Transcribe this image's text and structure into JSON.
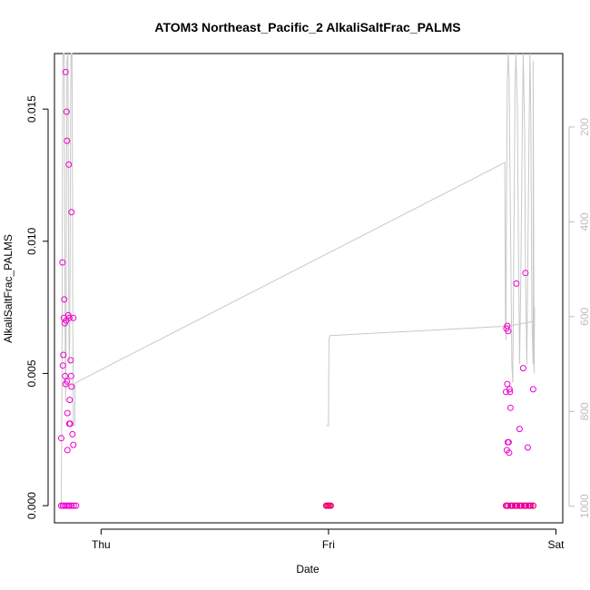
{
  "chart_data": {
    "type": "scatter",
    "title": "ATOM3 Northeast_Pacific_2 AlkaliSaltFrac_PALMS",
    "xlabel": "Date",
    "ylabel": "AlkaliSaltFrac_PALMS",
    "x_ticks": [
      {
        "label": "Thu",
        "value": 0
      },
      {
        "label": "Fri",
        "value": 1
      },
      {
        "label": "Sat",
        "value": 2
      }
    ],
    "xlim": [
      -0.205,
      2.03
    ],
    "ylim": [
      -0.00065,
      0.0171
    ],
    "y_ticks": [
      "0.000",
      "0.005",
      "0.010",
      "0.015"
    ],
    "y_tick_values": [
      0,
      0.005,
      0.01,
      0.015
    ],
    "right_axis": {
      "ticks": [
        "200",
        "400",
        "600",
        "800",
        "1000"
      ],
      "tick_values": [
        200,
        400,
        600,
        800,
        1000
      ],
      "reversed": true,
      "lim": [
        1035,
        45
      ],
      "color": "#bdbdbd"
    },
    "grid": false,
    "series": [
      {
        "marker": "open-circle",
        "color": "#ee00cc",
        "points": [
          [
            -0.175,
            0.00255
          ],
          [
            -0.17,
            0.0092
          ],
          [
            -0.168,
            0.0053
          ],
          [
            -0.166,
            0.0057
          ],
          [
            -0.164,
            0.0071
          ],
          [
            -0.162,
            0.0078
          ],
          [
            -0.16,
            0.0069
          ],
          [
            -0.158,
            0.0049
          ],
          [
            -0.156,
            0.0164
          ],
          [
            -0.156,
            0.0046
          ],
          [
            -0.154,
            0.007
          ],
          [
            -0.152,
            0.0149
          ],
          [
            -0.15,
            0.0138
          ],
          [
            -0.15,
            0.0047
          ],
          [
            -0.148,
            0.0035
          ],
          [
            -0.148,
            0.0021
          ],
          [
            -0.144,
            0.0072
          ],
          [
            -0.142,
            0.0129
          ],
          [
            -0.14,
            0.0071
          ],
          [
            -0.14,
            0.0031
          ],
          [
            -0.138,
            0.004
          ],
          [
            -0.136,
            0.0031
          ],
          [
            -0.134,
            0.0055
          ],
          [
            -0.132,
            0.0049
          ],
          [
            -0.13,
            0.0111
          ],
          [
            -0.13,
            0.0045
          ],
          [
            -0.126,
            0.0027
          ],
          [
            -0.122,
            0.0071
          ],
          [
            -0.122,
            0.0023
          ],
          [
            -0.175,
            0
          ],
          [
            -0.168,
            0
          ],
          [
            -0.16,
            0
          ],
          [
            -0.152,
            0
          ],
          [
            -0.145,
            0
          ],
          [
            -0.14,
            0
          ],
          [
            -0.13,
            0
          ],
          [
            -0.12,
            0
          ],
          [
            -0.11,
            0
          ],
          [
            1.78,
            0.0043
          ],
          [
            1.782,
            0.0067
          ],
          [
            1.784,
            0.0021
          ],
          [
            1.786,
            0.0068
          ],
          [
            1.786,
            0.0046
          ],
          [
            1.788,
            0.0024
          ],
          [
            1.79,
            0.0066
          ],
          [
            1.792,
            0.0024
          ],
          [
            1.794,
            0.002
          ],
          [
            1.796,
            0.0044
          ],
          [
            1.798,
            0.0043
          ],
          [
            1.8,
            0.0037
          ],
          [
            1.826,
            0.0084
          ],
          [
            1.84,
            0.0029
          ],
          [
            1.856,
            0.0052
          ],
          [
            1.866,
            0.0088
          ],
          [
            1.876,
            0.0022
          ],
          [
            1.9,
            0.0044
          ],
          [
            1.78,
            0
          ],
          [
            1.79,
            0
          ],
          [
            1.8,
            0
          ],
          [
            1.81,
            0
          ],
          [
            1.82,
            0
          ],
          [
            1.83,
            0
          ],
          [
            1.84,
            0
          ],
          [
            1.85,
            0
          ],
          [
            1.86,
            0
          ],
          [
            1.87,
            0
          ],
          [
            1.88,
            0
          ],
          [
            1.89,
            0
          ],
          [
            1.9,
            0
          ]
        ]
      },
      {
        "marker": "open-circle",
        "color": "#ee0066",
        "points": [
          [
            0.99,
            0
          ],
          [
            0.995,
            0
          ],
          [
            1.0,
            0
          ],
          [
            1.005,
            0
          ],
          [
            1.01,
            0
          ],
          [
            1.785,
            0
          ],
          [
            1.805,
            0
          ],
          [
            1.825,
            0
          ],
          [
            1.845,
            0
          ],
          [
            1.865,
            0
          ],
          [
            1.885,
            0
          ],
          [
            1.9,
            0
          ]
        ]
      },
      {
        "type": "line",
        "axis": "right",
        "color": "#c8c8c8",
        "points": [
          [
            -0.175,
            1000
          ],
          [
            -0.172,
            700
          ],
          [
            -0.17,
            300
          ],
          [
            -0.168,
            60
          ],
          [
            -0.166,
            45
          ],
          [
            -0.162,
            45
          ],
          [
            -0.16,
            400
          ],
          [
            -0.158,
            650
          ],
          [
            -0.156,
            780
          ],
          [
            -0.154,
            650
          ],
          [
            -0.152,
            300
          ],
          [
            -0.15,
            60
          ],
          [
            -0.146,
            45
          ],
          [
            -0.144,
            300
          ],
          [
            -0.142,
            600
          ],
          [
            -0.14,
            700
          ],
          [
            -0.138,
            650
          ],
          [
            -0.136,
            450
          ],
          [
            -0.134,
            150
          ],
          [
            -0.132,
            45
          ],
          [
            -0.128,
            45
          ],
          [
            -0.126,
            300
          ],
          [
            -0.124,
            650
          ],
          [
            -0.122,
            830
          ],
          [
            -0.116,
            830
          ],
          [
            -0.114,
            740
          ],
          [
            1.775,
            275
          ],
          [
            1.778,
            600
          ],
          [
            1.78,
            650
          ],
          [
            1.782,
            400
          ],
          [
            1.786,
            100
          ],
          [
            1.79,
            45
          ],
          [
            1.794,
            100
          ],
          [
            1.8,
            400
          ],
          [
            1.806,
            700
          ],
          [
            1.81,
            740
          ],
          [
            1.814,
            500
          ],
          [
            1.82,
            120
          ],
          [
            1.824,
            45
          ],
          [
            1.83,
            150
          ],
          [
            1.836,
            500
          ],
          [
            1.84,
            700
          ],
          [
            1.846,
            500
          ],
          [
            1.852,
            200
          ],
          [
            1.856,
            45
          ],
          [
            1.862,
            200
          ],
          [
            1.866,
            500
          ],
          [
            1.872,
            700
          ],
          [
            1.876,
            500
          ],
          [
            1.882,
            200
          ],
          [
            1.886,
            45
          ],
          [
            1.89,
            200
          ],
          [
            1.894,
            600
          ],
          [
            1.9,
            700
          ],
          [
            1.9,
            60
          ],
          [
            1.904,
            720
          ],
          [
            1.906,
            580
          ]
        ]
      },
      {
        "type": "line",
        "axis": "right",
        "color": "#c8c8c8",
        "points": [
          [
            0.99,
            830
          ],
          [
            1.0,
            830
          ],
          [
            1.002,
            650
          ],
          [
            1.006,
            640
          ],
          [
            1.79,
            620
          ],
          [
            1.9,
            610
          ]
        ]
      }
    ]
  }
}
